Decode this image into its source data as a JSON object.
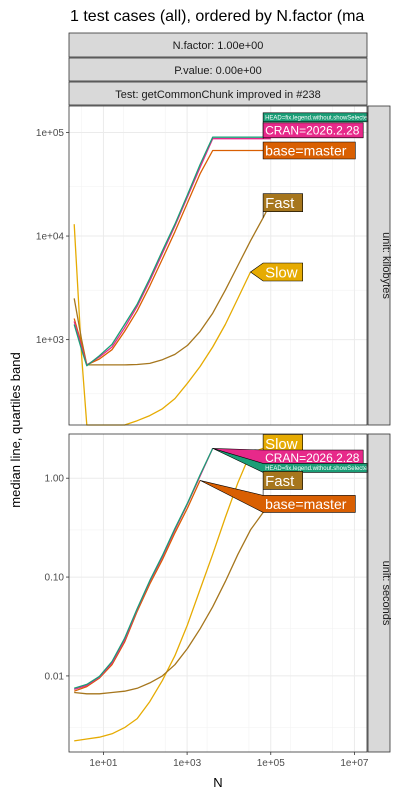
{
  "chart_data": {
    "type": "line",
    "title": "1 test cases (all), ordered by N.factor (ma",
    "strips": [
      "N.factor: 1.00e+00",
      "P.value: 0.00e+00",
      "Test: getCommonChunk improved in #238"
    ],
    "xlabel": "N",
    "ylabel": "median line, quartiles band",
    "x_log": true,
    "y_log": true,
    "grid": true,
    "xlim": [
      1.5,
      20000000
    ],
    "x_ticks": [
      {
        "value": 10,
        "label": "1e+01"
      },
      {
        "value": 1000,
        "label": "1e+03"
      },
      {
        "value": 100000,
        "label": "1e+05"
      },
      {
        "value": 10000000,
        "label": "1e+07"
      }
    ],
    "series_colors": {
      "HEAD=fix.legend.without.showSelectedLegend": "#1b9e77",
      "CRAN=2026.2.28": "#e7298a",
      "base=master": "#d95f02",
      "Fast": "#a6761d",
      "Slow": "#e6ab02"
    },
    "panels": [
      {
        "strip": "unit: kilobytes",
        "ylim": [
          150,
          180000
        ],
        "y_ticks": [
          {
            "value": 1000,
            "label": "1e+03"
          },
          {
            "value": 10000,
            "label": "1e+04"
          },
          {
            "value": 100000,
            "label": "1e+05"
          }
        ],
        "series": [
          {
            "key": "Slow",
            "x": [
              2,
              3,
              4,
              8,
              16,
              32,
              64,
              128,
              256,
              512,
              1024,
              2048,
              4096,
              8192,
              16384,
              32768
            ],
            "y": [
              13000,
              700,
              150,
              150,
              150,
              150,
              165,
              185,
              215,
              270,
              380,
              550,
              850,
              1400,
              2500,
              4500
            ]
          },
          {
            "key": "Fast",
            "x": [
              2,
              3,
              4,
              8,
              16,
              32,
              64,
              128,
              256,
              512,
              1024,
              2048,
              4096,
              8192,
              16384,
              32768,
              65536,
              100000
            ],
            "y": [
              2500,
              1000,
              570,
              570,
              570,
              570,
              575,
              590,
              640,
              720,
              880,
              1200,
              1800,
              3000,
              5200,
              9000,
              15000,
              21000
            ]
          },
          {
            "key": "base=master",
            "x": [
              2,
              3,
              4,
              8,
              16,
              32,
              64,
              128,
              256,
              512,
              1024,
              2048,
              4096,
              8192,
              16384,
              32768,
              65536,
              100000
            ],
            "y": [
              1600,
              900,
              570,
              650,
              800,
              1200,
              1900,
              3300,
              6000,
              11000,
              21000,
              40000,
              67000,
              67000,
              67000,
              67000,
              67000,
              67000
            ]
          },
          {
            "key": "CRAN=2026.2.28",
            "x": [
              2,
              3,
              4,
              8,
              16,
              32,
              64,
              128,
              256,
              512,
              1024,
              2048,
              4096,
              8192,
              16384,
              32768,
              65536,
              100000
            ],
            "y": [
              1500,
              850,
              570,
              680,
              850,
              1300,
              2100,
              3700,
              6800,
              12500,
              24000,
              46000,
              87000,
              87000,
              87000,
              87000,
              87000,
              87000
            ]
          },
          {
            "key": "HEAD=fix.legend.without.showSelectedLegend",
            "x": [
              2,
              3,
              4,
              8,
              16,
              32,
              64,
              128,
              256,
              512,
              1024,
              2048,
              4096,
              8192,
              16384,
              32768,
              65536,
              100000
            ],
            "y": [
              1400,
              800,
              560,
              700,
              900,
              1400,
              2200,
              3900,
              7200,
              13000,
              25000,
              49000,
              90000,
              90000,
              90000,
              90000,
              90000,
              90000
            ]
          }
        ],
        "labels": [
          {
            "key": "HEAD=fix.legend.without.showSelectedLegend",
            "text": "HEAD=fix.legend.without.showSelectedLe",
            "x": 65536,
            "y": 140000,
            "size": 6
          },
          {
            "key": "CRAN=2026.2.28",
            "text": "CRAN=2026.2.28",
            "x": 65536,
            "y": 105000,
            "size": 12
          },
          {
            "key": "base=master",
            "text": "base=master",
            "x": 65536,
            "y": 67000,
            "size": 14
          },
          {
            "key": "Fast",
            "text": "Fast",
            "x": 65536,
            "y": 21000,
            "size": 15
          },
          {
            "key": "Slow",
            "text": "Slow",
            "x": 65536,
            "y": 4500,
            "size": 15
          }
        ]
      },
      {
        "strip": "unit: seconds",
        "ylim": [
          0.0017,
          2.8
        ],
        "y_ticks": [
          {
            "value": 0.01,
            "label": "0.01"
          },
          {
            "value": 0.1,
            "label": "0.10"
          },
          {
            "value": 1,
            "label": "1.00"
          }
        ],
        "series": [
          {
            "key": "Slow",
            "x": [
              2,
              4,
              8,
              16,
              32,
              64,
              128,
              256,
              512,
              1024,
              2048,
              4096,
              8192,
              16384,
              32768,
              65536
            ],
            "y": [
              0.0022,
              0.0023,
              0.0024,
              0.0026,
              0.003,
              0.0037,
              0.0055,
              0.009,
              0.016,
              0.033,
              0.075,
              0.17,
              0.4,
              0.9,
              1.8,
              2.0
            ]
          },
          {
            "key": "Fast",
            "x": [
              2,
              4,
              8,
              16,
              32,
              64,
              128,
              256,
              512,
              1024,
              2048,
              4096,
              8192,
              16384,
              32768,
              65536,
              100000
            ],
            "y": [
              0.0068,
              0.0066,
              0.0066,
              0.0068,
              0.007,
              0.0075,
              0.0085,
              0.01,
              0.013,
              0.019,
              0.03,
              0.05,
              0.09,
              0.17,
              0.3,
              0.45,
              0.55
            ]
          },
          {
            "key": "base=master",
            "x": [
              2,
              4,
              8,
              16,
              32,
              64,
              128,
              256,
              512,
              1024,
              2048
            ],
            "y": [
              0.007,
              0.0078,
              0.0095,
              0.013,
              0.022,
              0.045,
              0.085,
              0.15,
              0.28,
              0.5,
              0.95
            ]
          },
          {
            "key": "CRAN=2026.2.28",
            "x": [
              2,
              4,
              8,
              16,
              32,
              64,
              128,
              256,
              512,
              1024,
              2048,
              4096
            ],
            "y": [
              0.0073,
              0.008,
              0.0097,
              0.0135,
              0.023,
              0.047,
              0.09,
              0.16,
              0.3,
              0.55,
              1.05,
              2.0
            ]
          },
          {
            "key": "HEAD=fix.legend.without.showSelectedLegend",
            "x": [
              2,
              4,
              8,
              16,
              32,
              64,
              128,
              256,
              512,
              1024,
              2048,
              4096
            ],
            "y": [
              0.0075,
              0.0082,
              0.0099,
              0.014,
              0.024,
              0.048,
              0.092,
              0.165,
              0.31,
              0.56,
              1.08,
              2.0
            ]
          }
        ],
        "labels": [
          {
            "key": "Slow",
            "text": "Slow",
            "x": 65536,
            "y": 2.25,
            "size": 15
          },
          {
            "key": "CRAN=2026.2.28",
            "text": "CRAN=2026.2.28",
            "x": 65536,
            "y": 1.62,
            "size": 12
          },
          {
            "key": "HEAD=fix.legend.without.showSelectedLegend",
            "text": "HEAD=fix.legend.without.showSelectedLe",
            "x": 65536,
            "y": 1.27,
            "size": 6
          },
          {
            "key": "Fast",
            "text": "Fast",
            "x": 65536,
            "y": 0.95,
            "size": 15
          },
          {
            "key": "base=master",
            "text": "base=master",
            "x": 65536,
            "y": 0.55,
            "size": 14
          }
        ]
      }
    ]
  }
}
